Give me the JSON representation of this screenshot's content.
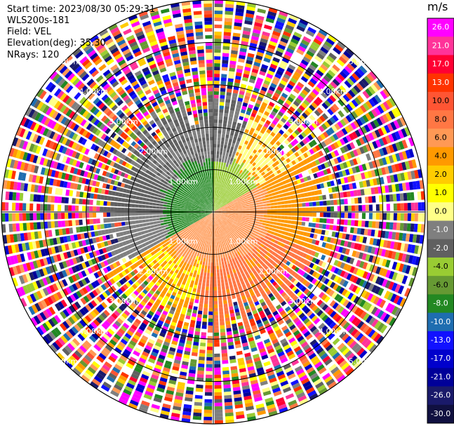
{
  "header": {
    "start_time": "Start time: 2023/08/30 05:29:31",
    "instrument": "WLS200s-181",
    "field": "Field: VEL",
    "elevation": "Elevation(deg): 35.30",
    "nrays": "NRays: 120"
  },
  "colorbar": {
    "unit": "m/s",
    "ticks": [
      "26.0",
      "21.0",
      "17.0",
      "13.0",
      "10.0",
      "8.0",
      "6.0",
      "4.0",
      "2.0",
      "1.0",
      "0.0",
      "-1.0",
      "-2.0",
      "-4.0",
      "-6.0",
      "-8.0",
      "-10.0",
      "-13.0",
      "-17.0",
      "-21.0",
      "-26.0",
      "-30.0"
    ],
    "colors": [
      "#ff00ff",
      "#ff3399",
      "#ff0033",
      "#ff3300",
      "#ff5533",
      "#ff7744",
      "#ff9955",
      "#ff9900",
      "#ffcc00",
      "#ffff00",
      "#ffff88",
      "#7f7f7f",
      "#606060",
      "#99cc33",
      "#669933",
      "#228822",
      "#1e6db0",
      "#1111ff",
      "#0000cc",
      "#000099",
      "#1a1a6a",
      "#101040"
    ]
  },
  "chart_data": {
    "type": "ppi",
    "field": "VEL",
    "units": "m/s",
    "elevation_deg": 35.3,
    "nrays": 120,
    "value_range": [
      -30.0,
      26.0
    ],
    "range_rings_km": [
      1.0,
      2.0,
      3.0,
      4.0,
      5.0
    ],
    "ring_labels": [
      "1.00km",
      "2.00km",
      "3.00km",
      "4.00km",
      "5.00km"
    ],
    "max_range_km": 5.0,
    "sectors": [
      {
        "name": "near-west",
        "approx_velocity": -4.0
      },
      {
        "name": "near-southeast",
        "approx_velocity": 6.0
      },
      {
        "name": "near-east",
        "approx_velocity": 2.0
      }
    ]
  }
}
